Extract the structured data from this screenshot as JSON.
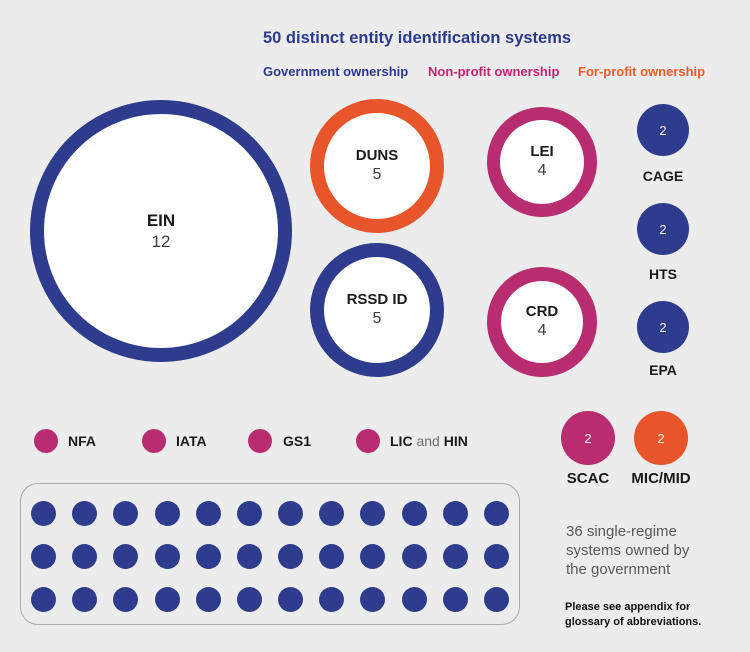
{
  "title": "50 distinct entity identification systems",
  "legend": {
    "items": [
      {
        "label": "Government ownership",
        "color": "#2B3A8D"
      },
      {
        "label": "Non-profit ownership",
        "color": "#C2246E"
      },
      {
        "label": "For-profit ownership",
        "color": "#F15A29"
      }
    ]
  },
  "bubbles": {
    "ein": {
      "label": "EIN",
      "value": "12",
      "ownership": "government"
    },
    "duns": {
      "label": "DUNS",
      "value": "5",
      "ownership": "for-profit"
    },
    "rssd": {
      "label": "RSSD ID",
      "value": "5",
      "ownership": "government"
    },
    "lei": {
      "label": "LEI",
      "value": "4",
      "ownership": "non-profit"
    },
    "crd": {
      "label": "CRD",
      "value": "4",
      "ownership": "non-profit"
    },
    "cage": {
      "label": "CAGE",
      "value": "2",
      "ownership": "government"
    },
    "hts": {
      "label": "HTS",
      "value": "2",
      "ownership": "government"
    },
    "epa": {
      "label": "EPA",
      "value": "2",
      "ownership": "government"
    },
    "scac": {
      "label": "SCAC",
      "value": "2",
      "ownership": "non-profit"
    },
    "micmid": {
      "label": "MIC/MID",
      "value": "2",
      "ownership": "for-profit"
    }
  },
  "dot_row": {
    "nfa": {
      "label": "NFA"
    },
    "iata": {
      "label": "IATA"
    },
    "gs1": {
      "label": "GS1"
    },
    "lic_hin": {
      "bold1": "LIC",
      "mid": " and ",
      "bold2": "HIN"
    }
  },
  "single_regime": {
    "count": 36,
    "note": "36 single-regime\nsystems owned by\nthe government"
  },
  "footnote": "Please see appendix for\nglossary of abbreviations.",
  "colors": {
    "government": "#2D3C8C",
    "non_profit": "#B82D6F",
    "for_profit": "#E8552A",
    "background": "#EDECEC"
  },
  "chart_data": {
    "type": "bubble",
    "title": "50 distinct entity identification systems",
    "total_systems": 50,
    "legend": [
      "Government ownership",
      "Non-profit ownership",
      "For-profit ownership"
    ],
    "legend_position": "top",
    "series": [
      {
        "name": "Government ownership",
        "color": "#2D3C8C",
        "points": [
          {
            "label": "EIN",
            "value": 12
          },
          {
            "label": "RSSD ID",
            "value": 5
          },
          {
            "label": "CAGE",
            "value": 2
          },
          {
            "label": "HTS",
            "value": 2
          },
          {
            "label": "EPA",
            "value": 2
          }
        ]
      },
      {
        "name": "Non-profit ownership",
        "color": "#B82D6F",
        "points": [
          {
            "label": "LEI",
            "value": 4
          },
          {
            "label": "CRD",
            "value": 4
          },
          {
            "label": "SCAC",
            "value": 2
          },
          {
            "label": "NFA",
            "value": null
          },
          {
            "label": "IATA",
            "value": null
          },
          {
            "label": "GS1",
            "value": null
          },
          {
            "label": "LIC and HIN",
            "value": null
          }
        ]
      },
      {
        "name": "For-profit ownership",
        "color": "#E8552A",
        "points": [
          {
            "label": "DUNS",
            "value": 5
          },
          {
            "label": "MIC/MID",
            "value": 2
          }
        ]
      }
    ],
    "single_regime_government_count": 36,
    "annotations": [
      "36 single-regime systems owned by the government",
      "Please see appendix for glossary of abbreviations."
    ]
  }
}
